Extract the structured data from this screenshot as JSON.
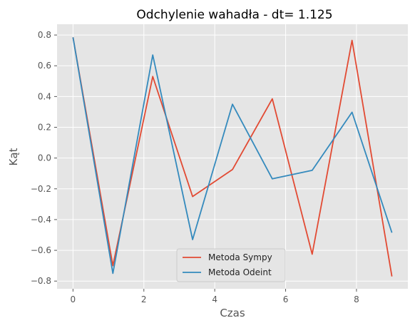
{
  "chart_data": {
    "type": "line",
    "title": "Odchylenie wahadła - dt= 1.125",
    "xlabel": "Czas",
    "ylabel": "Kąt",
    "xlim": [
      -0.45,
      9.45
    ],
    "ylim": [
      -0.85,
      0.87
    ],
    "x_ticks": [
      0,
      2,
      4,
      6,
      8
    ],
    "x_tick_labels": [
      "0",
      "2",
      "4",
      "6",
      "8"
    ],
    "y_ticks": [
      -0.8,
      -0.6,
      -0.4,
      -0.2,
      0.0,
      0.2,
      0.4,
      0.6,
      0.8
    ],
    "y_tick_labels": [
      "−0.8",
      "−0.6",
      "−0.4",
      "−0.2",
      "0.0",
      "0.2",
      "0.4",
      "0.6",
      "0.8"
    ],
    "grid": true,
    "legend_position": "lower-center",
    "x": [
      0,
      1.125,
      2.25,
      3.375,
      4.5,
      5.625,
      6.75,
      7.875,
      9.0
    ],
    "series": [
      {
        "name": "Metoda Sympy",
        "color": "#E24A33",
        "values": [
          0.785,
          -0.7,
          0.53,
          -0.25,
          -0.075,
          0.385,
          -0.625,
          0.765,
          -0.77
        ]
      },
      {
        "name": "Metoda Odeint",
        "color": "#348ABD",
        "values": [
          0.785,
          -0.75,
          0.67,
          -0.53,
          0.35,
          -0.135,
          -0.08,
          0.298,
          -0.485
        ]
      }
    ]
  }
}
